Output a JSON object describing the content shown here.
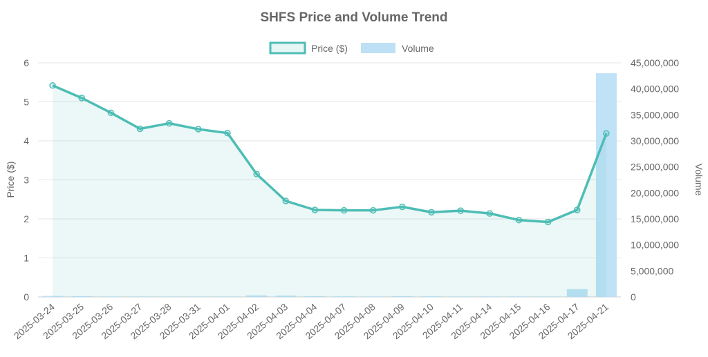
{
  "chart_data": {
    "type": "line+bar",
    "title": "SHFS Price and Volume Trend",
    "categories": [
      "2025-03-24",
      "2025-03-25",
      "2025-03-26",
      "2025-03-27",
      "2025-03-28",
      "2025-03-31",
      "2025-04-01",
      "2025-04-02",
      "2025-04-03",
      "2025-04-04",
      "2025-04-07",
      "2025-04-08",
      "2025-04-09",
      "2025-04-10",
      "2025-04-11",
      "2025-04-14",
      "2025-04-15",
      "2025-04-16",
      "2025-04-17",
      "2025-04-21"
    ],
    "series": [
      {
        "name": "Price ($)",
        "type": "line",
        "axis": "left",
        "color": "#4dbdb5",
        "values": [
          5.42,
          5.1,
          4.72,
          4.31,
          4.45,
          4.3,
          4.2,
          3.15,
          2.46,
          2.23,
          2.22,
          2.22,
          2.31,
          2.17,
          2.21,
          2.14,
          1.97,
          1.92,
          2.23,
          4.19
        ]
      },
      {
        "name": "Volume",
        "type": "bar",
        "axis": "right",
        "color": "#bde0f5",
        "values": [
          200000,
          150000,
          100000,
          100000,
          80000,
          80000,
          100000,
          300000,
          250000,
          150000,
          120000,
          100000,
          150000,
          120000,
          100000,
          100000,
          100000,
          100000,
          1500000,
          43000000
        ]
      }
    ],
    "ylabel": "Price ($)",
    "y2label": "Volume",
    "ylim": [
      0,
      6
    ],
    "y2lim": [
      0,
      45000000
    ],
    "yticks": [
      "0",
      "1",
      "2",
      "3",
      "4",
      "5",
      "6"
    ],
    "y2ticks": [
      "0",
      "5,000,000",
      "10,000,000",
      "15,000,000",
      "20,000,000",
      "25,000,000",
      "30,000,000",
      "35,000,000",
      "40,000,000",
      "45,000,000"
    ],
    "legend": "top-center",
    "grid": true
  }
}
